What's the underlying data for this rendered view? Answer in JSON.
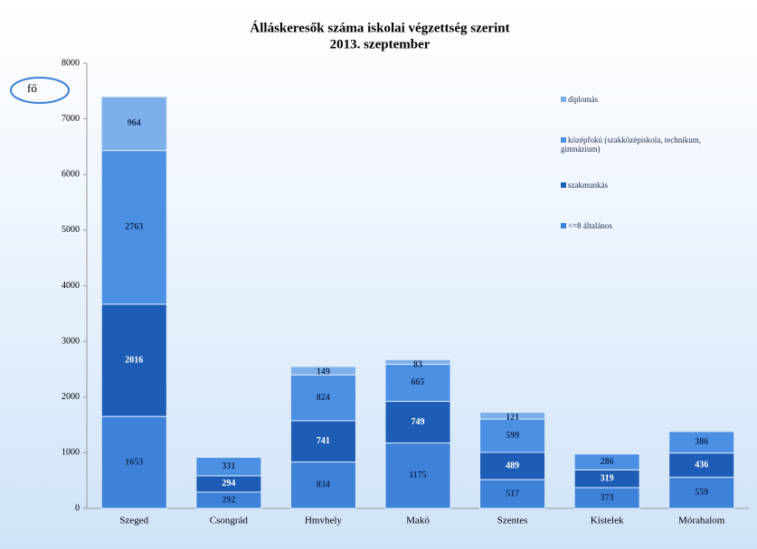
{
  "chart_data": {
    "type": "stacked_bar",
    "title": "Álláskeresők száma iskolai végzettség szerint",
    "subtitle": "2013. szeptember",
    "y_label": "fő",
    "categories": [
      "Szeged",
      "Csongrád",
      "Hmvhely",
      "Makó",
      "Szentes",
      "Kistelek",
      "Mórahalom"
    ],
    "series": [
      {
        "name": "<=8 általános",
        "color": "#3d82d8",
        "values": [
          1653,
          292,
          834,
          1175,
          517,
          373,
          559
        ]
      },
      {
        "name": "szakmunkás",
        "color": "#1d5db5",
        "values": [
          2016,
          294,
          741,
          749,
          489,
          319,
          436
        ]
      },
      {
        "name": "középfokú (szakközépiskola, technikum, gimnázium)",
        "color": "#4b90e2",
        "values": [
          2763,
          331,
          824,
          665,
          599,
          286,
          386
        ]
      },
      {
        "name": "diplomás",
        "color": "#7db0ea",
        "values": [
          964,
          null,
          149,
          83,
          121,
          null,
          null
        ]
      }
    ],
    "ylim": [
      0,
      8000
    ],
    "yticks": [
      0,
      1000,
      2000,
      3000,
      4000,
      5000,
      6000,
      7000,
      8000
    ],
    "legend": "right"
  }
}
